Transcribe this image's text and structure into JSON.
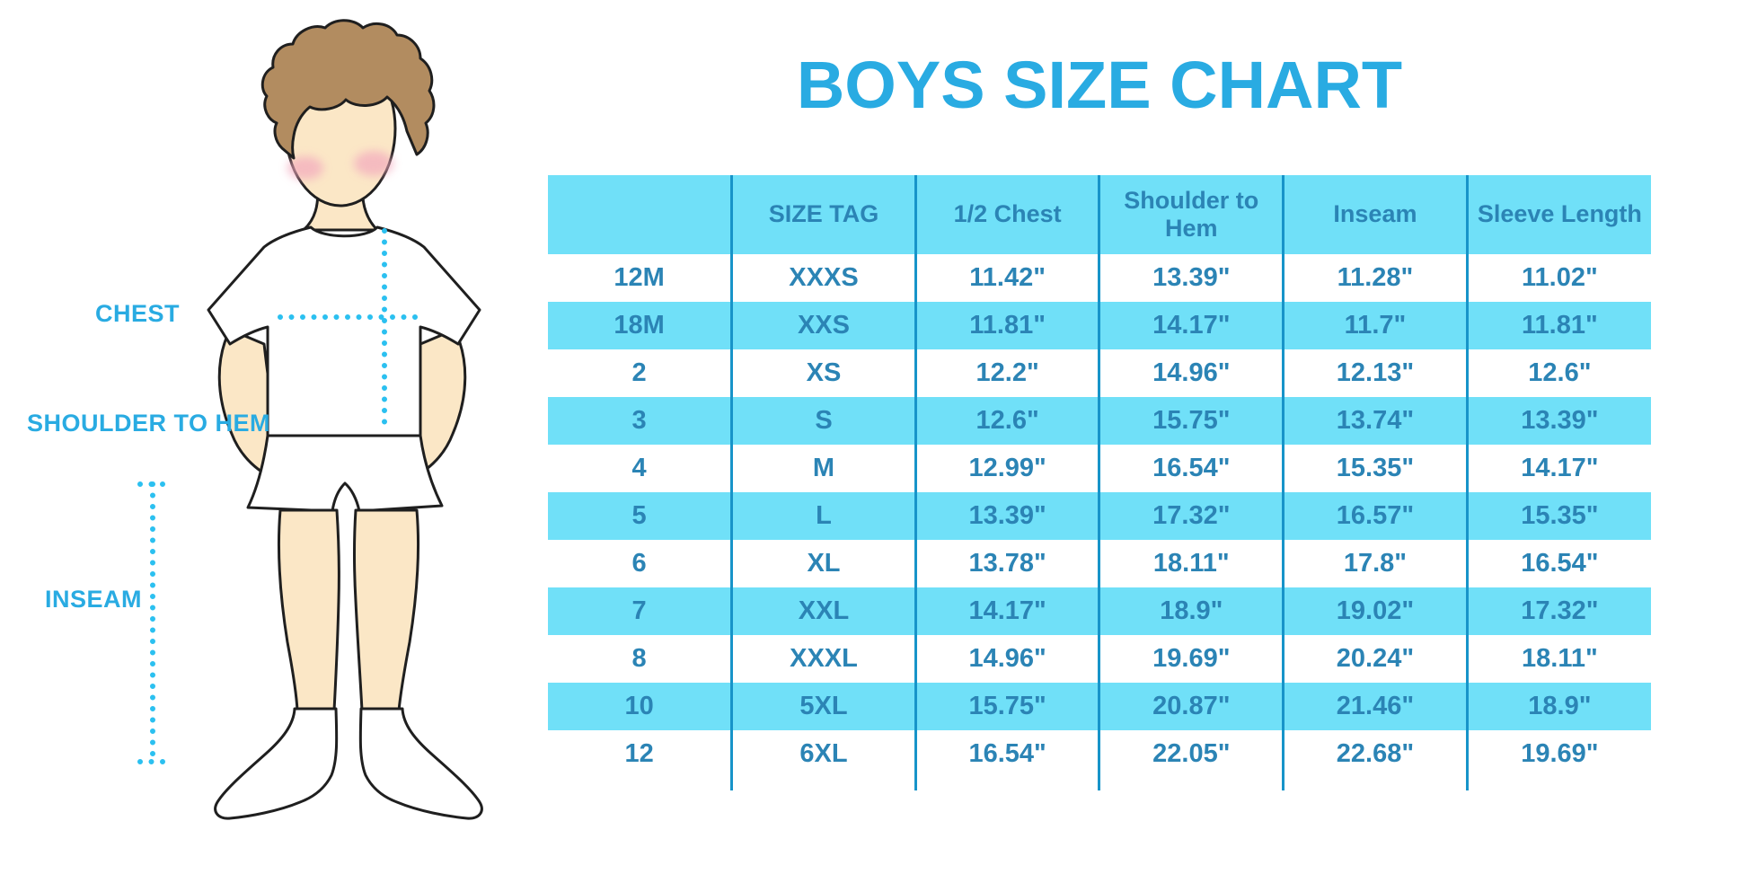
{
  "title": "BOYS SIZE CHART",
  "figure": {
    "labels": {
      "chest": "CHEST",
      "shoulder_to_hem": "SHOULDER TO HEM",
      "inseam": "INSEAM"
    }
  },
  "chart_data": {
    "type": "table",
    "title": "BOYS SIZE CHART",
    "columns": [
      "",
      "SIZE TAG",
      "1/2 Chest",
      "Shoulder to Hem",
      "Inseam",
      "Sleeve Length"
    ],
    "rows": [
      [
        "12M",
        "XXXS",
        "11.42\"",
        "13.39\"",
        "11.28\"",
        "11.02\""
      ],
      [
        "18M",
        "XXS",
        "11.81\"",
        "14.17\"",
        "11.7\"",
        "11.81\""
      ],
      [
        "2",
        "XS",
        "12.2\"",
        "14.96\"",
        "12.13\"",
        "12.6\""
      ],
      [
        "3",
        "S",
        "12.6\"",
        "15.75\"",
        "13.74\"",
        "13.39\""
      ],
      [
        "4",
        "M",
        "12.99\"",
        "16.54\"",
        "15.35\"",
        "14.17\""
      ],
      [
        "5",
        "L",
        "13.39\"",
        "17.32\"",
        "16.57\"",
        "15.35\""
      ],
      [
        "6",
        "XL",
        "13.78\"",
        "18.11\"",
        "17.8\"",
        "16.54\""
      ],
      [
        "7",
        "XXL",
        "14.17\"",
        "18.9\"",
        "19.02\"",
        "17.32\""
      ],
      [
        "8",
        "XXXL",
        "14.96\"",
        "19.69\"",
        "20.24\"",
        "18.11\""
      ],
      [
        "10",
        "5XL",
        "15.75\"",
        "20.87\"",
        "21.46\"",
        "18.9\""
      ],
      [
        "12",
        "6XL",
        "16.54\"",
        "22.05\"",
        "22.68\"",
        "19.69\""
      ]
    ],
    "layout": {
      "row_striping": "alternating white and cyan starting white",
      "grid": "vertical column dividers only, stubs extend below last row",
      "legend": "none"
    }
  },
  "colors": {
    "accent-blue": "#29ABE2",
    "table-fill": "#70E0F8",
    "table-text": "#2B84B5",
    "divider": "#1794C9",
    "dotted-line": "#2BC0F0",
    "skin": "#FBE7C6",
    "hair": "#B28C60",
    "cheek": "#F3A9BE"
  }
}
